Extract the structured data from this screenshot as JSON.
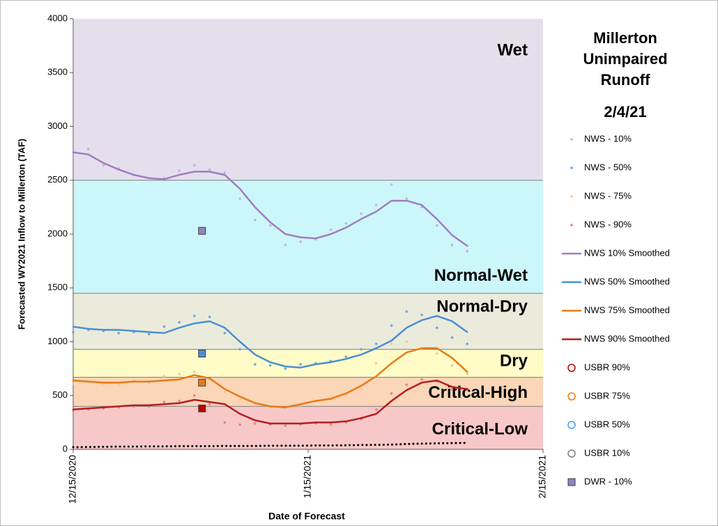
{
  "chart_data": {
    "type": "line",
    "title": "Millerton Unimpaired Runoff",
    "subtitle": "2/4/21",
    "x_label": "Date of Forecast",
    "y_label": "Forecasted WY2021 Inflow to Millerton (TAF)",
    "xlim": [
      "12/15/2020",
      "2/15/2021"
    ],
    "xticks": [
      "12/15/2020",
      "1/15/2021",
      "2/15/2021"
    ],
    "ylim": [
      0,
      4000
    ],
    "yticks": [
      0,
      500,
      1000,
      1500,
      2000,
      2500,
      3000,
      3500,
      4000
    ],
    "zones": [
      {
        "label": "Wet",
        "range": [
          2500,
          4000
        ],
        "color": "#e5dfec",
        "label_color": "#c9bcdb"
      },
      {
        "label": "Normal-Wet",
        "range": [
          1450,
          2500
        ],
        "color": "#ccf7fa",
        "label_color": "#8ec6dc"
      },
      {
        "label": "Normal-Dry",
        "range": [
          930,
          1450
        ],
        "color": "#ebebdc",
        "label_color": "#d9d9b4"
      },
      {
        "label": "Dry",
        "range": [
          670,
          930
        ],
        "color": "#fffcc8",
        "label_color": "#e6d896"
      },
      {
        "label": "Critical-High",
        "range": [
          400,
          670
        ],
        "color": "#fbd6b8",
        "label_color": "#f6b07c"
      },
      {
        "label": "Critical-Low",
        "range": [
          0,
          400
        ],
        "color": "#f8c8c8",
        "label_color": "#e89a9a"
      }
    ],
    "x": [
      "12/15/2020",
      "12/17/2020",
      "12/19/2020",
      "12/21/2020",
      "12/23/2020",
      "12/25/2020",
      "12/27/2020",
      "12/29/2020",
      "12/31/2020",
      "1/2/2021",
      "1/4/2021",
      "1/6/2021",
      "1/8/2021",
      "1/10/2021",
      "1/12/2021",
      "1/14/2021",
      "1/16/2021",
      "1/18/2021",
      "1/20/2021",
      "1/22/2021",
      "1/24/2021",
      "1/26/2021",
      "1/28/2021",
      "1/30/2021",
      "2/1/2021",
      "2/3/2021",
      "2/5/2021"
    ],
    "series": [
      {
        "name": "NWS - 10%",
        "kind": "dots",
        "color": "#c6b4d8",
        "values": [
          2720,
          2790,
          2640,
          2610,
          2550,
          2500,
          2520,
          2590,
          2640,
          2600,
          2570,
          2330,
          2130,
          2080,
          1900,
          1930,
          1950,
          2040,
          2100,
          2190,
          2270,
          2460,
          2330,
          2250,
          2080,
          1900,
          1840
        ]
      },
      {
        "name": "NWS - 50%",
        "kind": "dots",
        "color": "#6fa8dc",
        "values": [
          1090,
          1110,
          1100,
          1080,
          1090,
          1070,
          1140,
          1180,
          1240,
          1230,
          1080,
          930,
          790,
          780,
          750,
          790,
          800,
          820,
          860,
          930,
          980,
          1150,
          1280,
          1250,
          1130,
          1040,
          980
        ]
      },
      {
        "name": "NWS - 75%",
        "kind": "dots",
        "color": "#f9c690",
        "values": [
          610,
          630,
          610,
          600,
          640,
          620,
          680,
          700,
          720,
          650,
          530,
          460,
          410,
          390,
          380,
          410,
          450,
          460,
          500,
          560,
          800,
          980,
          1000,
          930,
          890,
          780,
          700
        ]
      },
      {
        "name": "NWS - 90%",
        "kind": "dots",
        "color": "#d98888",
        "values": [
          360,
          370,
          380,
          390,
          400,
          400,
          440,
          450,
          500,
          420,
          250,
          230,
          240,
          230,
          220,
          230,
          240,
          230,
          250,
          280,
          370,
          520,
          600,
          650,
          630,
          560,
          560
        ]
      },
      {
        "name": "NWS 10% Smoothed",
        "kind": "line",
        "color": "#a27cc1",
        "values": [
          2760,
          2740,
          2660,
          2600,
          2550,
          2520,
          2510,
          2550,
          2580,
          2580,
          2550,
          2420,
          2250,
          2110,
          2000,
          1970,
          1960,
          2000,
          2060,
          2140,
          2210,
          2310,
          2310,
          2270,
          2140,
          1990,
          1890
        ]
      },
      {
        "name": "NWS 50% Smoothed",
        "kind": "line",
        "color": "#4a8fd4",
        "values": [
          1140,
          1120,
          1110,
          1110,
          1100,
          1090,
          1080,
          1130,
          1170,
          1190,
          1130,
          1000,
          880,
          810,
          770,
          760,
          790,
          810,
          840,
          880,
          940,
          1010,
          1130,
          1200,
          1240,
          1190,
          1090
        ]
      },
      {
        "name": "NWS 75% Smoothed",
        "kind": "line",
        "color": "#e87a14",
        "values": [
          640,
          630,
          620,
          620,
          630,
          630,
          640,
          650,
          690,
          660,
          560,
          490,
          430,
          400,
          390,
          420,
          450,
          470,
          520,
          590,
          680,
          800,
          900,
          940,
          940,
          850,
          720
        ]
      },
      {
        "name": "NWS 90% Smoothed",
        "kind": "line",
        "color": "#b41e1e",
        "values": [
          370,
          380,
          390,
          400,
          410,
          410,
          420,
          430,
          460,
          440,
          420,
          330,
          270,
          240,
          240,
          240,
          250,
          250,
          260,
          290,
          330,
          450,
          550,
          620,
          640,
          580,
          560
        ]
      },
      {
        "name": "USBR 90%",
        "kind": "circle",
        "color": "#c00000",
        "x": [],
        "values": []
      },
      {
        "name": "USBR 75%",
        "kind": "circle",
        "color": "#e87a14",
        "x": [],
        "values": []
      },
      {
        "name": "USBR 50%",
        "kind": "circle",
        "color": "#4a9ae8",
        "x": [],
        "values": []
      },
      {
        "name": "USBR 10%",
        "kind": "circle",
        "color": "#7f7f7f",
        "x": [],
        "values": []
      },
      {
        "name": "DWR - 10%",
        "kind": "square",
        "color": "#8d86c0",
        "x": [
          "1/1/2021"
        ],
        "values": [
          2030
        ]
      },
      {
        "kind": "square",
        "color": "#4a8fd4",
        "x": [
          "1/1/2021"
        ],
        "values": [
          890
        ]
      },
      {
        "kind": "square",
        "color": "#e87a14",
        "x": [
          "1/1/2021"
        ],
        "values": [
          620
        ]
      },
      {
        "kind": "square",
        "color": "#c00000",
        "x": [
          "1/1/2021"
        ],
        "values": [
          380
        ]
      },
      {
        "kind": "dotted",
        "color": "#000000",
        "values": [
          20,
          22,
          24,
          26,
          26,
          28,
          28,
          30,
          30,
          30,
          32,
          32,
          32,
          34,
          34,
          34,
          36,
          36,
          38,
          40,
          42,
          44,
          50,
          54,
          56,
          58,
          60
        ]
      }
    ]
  }
}
